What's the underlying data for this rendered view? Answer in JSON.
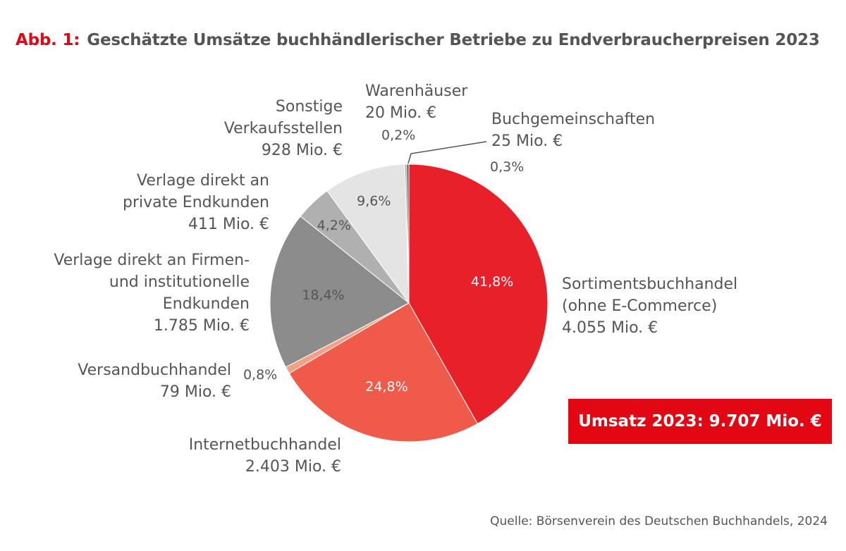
{
  "title": {
    "prefix": "Abb. 1:",
    "text": "Geschätzte Umsätze buchhändlerischer Betriebe zu Endverbraucherpreisen 2023"
  },
  "total": "Umsatz 2023: 9.707 Mio. €",
  "source": "Quelle: Börsenverein des Deutschen Buchhandels, 2024",
  "chart_data": {
    "type": "pie",
    "unit": "Mio. €",
    "total": 9707,
    "slices": [
      {
        "name": [
          "Sortimentsbuchhandel",
          "(ohne E-Commerce)"
        ],
        "value": 4055,
        "value_label": "4.055 Mio. €",
        "percent": 41.8,
        "percent_label": "41,8%",
        "color": "#e8202a"
      },
      {
        "name": [
          "Internetbuchhandel"
        ],
        "value": 2403,
        "value_label": "2.403 Mio. €",
        "percent": 24.8,
        "percent_label": "24,8%",
        "color": "#ef5a4b"
      },
      {
        "name": [
          "Versandbuchhandel"
        ],
        "value": 79,
        "value_label": "79 Mio. €",
        "percent": 0.8,
        "percent_label": "0,8%",
        "color": "#f4a086"
      },
      {
        "name": [
          "Verlage direkt an Firmen-",
          "und institutionelle",
          "Endkunden"
        ],
        "value": 1785,
        "value_label": "1.785 Mio. €",
        "percent": 18.4,
        "percent_label": "18,4%",
        "color": "#8d8c8c"
      },
      {
        "name": [
          "Verlage direkt an",
          "private Endkunden"
        ],
        "value": 411,
        "value_label": "411 Mio. €",
        "percent": 4.2,
        "percent_label": "4,2%",
        "color": "#b1b0b0"
      },
      {
        "name": [
          "Sonstige",
          "Verkaufsstellen"
        ],
        "value": 928,
        "value_label": "928 Mio. €",
        "percent": 9.6,
        "percent_label": "9,6%",
        "color": "#e4e4e4"
      },
      {
        "name": [
          "Warenhäuser"
        ],
        "value": 20,
        "value_label": "20 Mio. €",
        "percent": 0.2,
        "percent_label": "0,2%",
        "color": "#9a9a9a"
      },
      {
        "name": [
          "Buchgemeinschaften"
        ],
        "value": 25,
        "value_label": "25 Mio. €",
        "percent": 0.3,
        "percent_label": "0,3%",
        "color": "#5c5c5c"
      }
    ]
  }
}
